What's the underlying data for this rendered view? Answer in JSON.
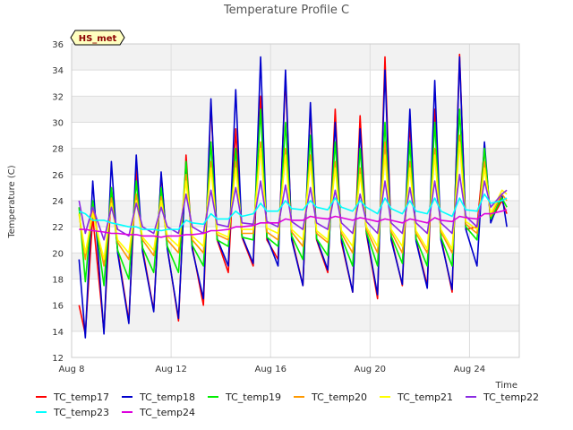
{
  "chart_data": {
    "type": "line",
    "title": "Temperature Profile C",
    "xlabel": "Time",
    "ylabel": "Temperature (C)",
    "badge": "HS_met",
    "xlim": [
      0,
      18
    ],
    "ylim": [
      12,
      36
    ],
    "x_ticks": [
      {
        "pos": 0,
        "label": "Aug 8"
      },
      {
        "pos": 4,
        "label": "Aug 12"
      },
      {
        "pos": 8,
        "label": "Aug 16"
      },
      {
        "pos": 12,
        "label": "Aug 20"
      },
      {
        "pos": 16,
        "label": "Aug 24"
      }
    ],
    "y_ticks": [
      12,
      14,
      16,
      18,
      20,
      22,
      24,
      26,
      28,
      30,
      32,
      34,
      36
    ],
    "grid": true,
    "legend_position": "bottom",
    "x": [
      0.3,
      0.55,
      0.85,
      1.3,
      1.6,
      1.85,
      2.3,
      2.6,
      2.85,
      3.3,
      3.6,
      3.85,
      4.3,
      4.6,
      4.85,
      5.3,
      5.6,
      5.85,
      6.3,
      6.6,
      6.85,
      7.3,
      7.6,
      7.85,
      8.3,
      8.6,
      8.85,
      9.3,
      9.6,
      9.85,
      10.3,
      10.6,
      10.85,
      11.3,
      11.6,
      11.85,
      12.3,
      12.6,
      12.85,
      13.3,
      13.6,
      13.85,
      14.3,
      14.6,
      14.85,
      15.3,
      15.6,
      15.85,
      16.3,
      16.6,
      16.85,
      17.3,
      17.5
    ],
    "series": [
      {
        "name": "TC_temp17",
        "color": "#ff0000",
        "values": [
          16.0,
          13.8,
          22.8,
          14.0,
          25.0,
          20.2,
          14.8,
          26.5,
          20.3,
          15.6,
          26.0,
          20.4,
          14.8,
          27.5,
          20.5,
          16.0,
          31.5,
          21.0,
          18.5,
          29.5,
          21.2,
          19.0,
          32.0,
          21.0,
          19.5,
          33.5,
          21.2,
          17.5,
          31.0,
          21.0,
          18.5,
          31.0,
          20.8,
          17.0,
          30.5,
          21.5,
          16.5,
          35.0,
          21.2,
          17.5,
          30.0,
          21.0,
          17.5,
          31.0,
          21.2,
          17.0,
          35.2,
          21.8,
          22.0,
          28.0,
          22.5,
          24.0,
          23.0
        ]
      },
      {
        "name": "TC_temp18",
        "color": "#0000cc",
        "values": [
          19.5,
          13.5,
          25.5,
          13.8,
          27.0,
          20.0,
          14.6,
          27.5,
          20.1,
          15.5,
          26.2,
          20.3,
          15.0,
          27.0,
          20.3,
          16.5,
          31.8,
          21.1,
          19.0,
          32.5,
          21.3,
          19.2,
          35.0,
          21.2,
          19.0,
          34.0,
          21.0,
          17.5,
          31.5,
          21.1,
          18.7,
          30.0,
          21.0,
          17.0,
          29.5,
          21.6,
          16.8,
          34.0,
          21.0,
          17.6,
          31.0,
          20.9,
          17.3,
          33.2,
          21.0,
          17.2,
          35.0,
          21.8,
          19.0,
          28.5,
          22.3,
          24.5,
          22.0
        ]
      },
      {
        "name": "TC_temp19",
        "color": "#00ee00",
        "values": [
          23.5,
          17.8,
          24.0,
          17.5,
          25.0,
          20.2,
          18.0,
          25.5,
          20.4,
          18.5,
          25.0,
          20.5,
          18.5,
          27.0,
          20.6,
          19.0,
          28.5,
          21.0,
          20.5,
          28.0,
          21.2,
          21.0,
          31.0,
          21.2,
          20.5,
          30.0,
          21.3,
          19.5,
          29.0,
          21.1,
          19.8,
          28.5,
          21.2,
          19.0,
          28.0,
          21.6,
          19.0,
          30.0,
          21.3,
          19.2,
          28.5,
          21.1,
          19.0,
          30.0,
          21.2,
          19.0,
          31.0,
          22.0,
          21.0,
          28.0,
          22.6,
          24.2,
          23.5
        ]
      },
      {
        "name": "TC_temp20",
        "color": "#ff9900",
        "values": [
          23.0,
          19.5,
          23.5,
          19.0,
          24.2,
          20.8,
          19.5,
          24.5,
          21.0,
          19.8,
          24.3,
          21.0,
          20.0,
          26.0,
          21.0,
          20.0,
          27.0,
          21.4,
          21.0,
          27.0,
          21.5,
          21.5,
          28.5,
          21.6,
          21.0,
          28.0,
          21.6,
          20.5,
          27.5,
          21.5,
          20.8,
          27.0,
          21.5,
          20.0,
          26.5,
          21.8,
          20.0,
          28.5,
          21.6,
          20.0,
          27.0,
          21.5,
          20.0,
          28.0,
          21.6,
          20.0,
          29.0,
          22.2,
          21.5,
          27.0,
          22.8,
          24.5,
          24.0
        ]
      },
      {
        "name": "TC_temp21",
        "color": "#ffff00",
        "values": [
          23.0,
          20.0,
          23.0,
          19.5,
          23.8,
          21.0,
          20.0,
          24.0,
          21.2,
          20.2,
          24.0,
          21.3,
          20.5,
          25.5,
          21.3,
          20.5,
          26.5,
          21.6,
          21.2,
          26.5,
          21.8,
          21.8,
          28.0,
          21.9,
          21.5,
          27.5,
          21.8,
          21.0,
          27.0,
          21.7,
          21.0,
          26.5,
          21.7,
          20.5,
          26.0,
          22.0,
          20.5,
          27.5,
          21.8,
          20.5,
          26.5,
          21.7,
          20.3,
          27.5,
          21.8,
          20.3,
          28.5,
          22.4,
          21.8,
          26.5,
          23.0,
          24.8,
          24.5
        ]
      },
      {
        "name": "TC_temp22",
        "color": "#8a2be2",
        "values": [
          24.0,
          21.5,
          23.5,
          21.0,
          23.5,
          21.8,
          21.3,
          23.8,
          22.0,
          21.5,
          23.5,
          22.0,
          21.5,
          24.5,
          22.0,
          21.5,
          24.8,
          22.2,
          22.0,
          25.0,
          22.3,
          22.2,
          25.5,
          22.4,
          22.0,
          25.2,
          22.4,
          21.8,
          25.0,
          22.3,
          21.8,
          24.8,
          22.3,
          21.5,
          24.5,
          22.4,
          21.5,
          25.5,
          22.3,
          21.5,
          25.0,
          22.3,
          21.5,
          25.5,
          22.3,
          21.5,
          26.0,
          22.8,
          22.0,
          25.5,
          23.5,
          24.5,
          24.8
        ]
      },
      {
        "name": "TC_temp23",
        "color": "#00ffff",
        "values": [
          23.2,
          23.0,
          22.5,
          22.5,
          22.3,
          22.2,
          22.0,
          22.0,
          21.8,
          21.8,
          21.7,
          21.8,
          21.8,
          22.5,
          22.3,
          22.2,
          23.0,
          22.6,
          22.6,
          23.2,
          22.8,
          23.0,
          23.8,
          23.2,
          23.2,
          24.0,
          23.4,
          23.3,
          24.0,
          23.5,
          23.3,
          24.2,
          23.5,
          23.2,
          24.0,
          23.5,
          23.0,
          24.2,
          23.4,
          23.0,
          24.0,
          23.2,
          23.0,
          24.2,
          23.2,
          22.8,
          24.2,
          23.3,
          23.2,
          24.5,
          23.8,
          24.0,
          24.2
        ]
      },
      {
        "name": "TC_temp24",
        "color": "#dd00dd",
        "values": [
          21.8,
          21.8,
          21.7,
          21.6,
          21.5,
          21.5,
          21.4,
          21.4,
          21.3,
          21.3,
          21.2,
          21.3,
          21.3,
          21.4,
          21.4,
          21.5,
          21.7,
          21.7,
          21.8,
          22.0,
          22.0,
          22.1,
          22.3,
          22.3,
          22.3,
          22.6,
          22.5,
          22.5,
          22.8,
          22.7,
          22.6,
          22.8,
          22.7,
          22.5,
          22.7,
          22.6,
          22.4,
          22.6,
          22.5,
          22.3,
          22.6,
          22.5,
          22.3,
          22.7,
          22.5,
          22.4,
          22.8,
          22.7,
          22.6,
          23.0,
          23.0,
          23.2,
          23.3
        ]
      }
    ]
  }
}
